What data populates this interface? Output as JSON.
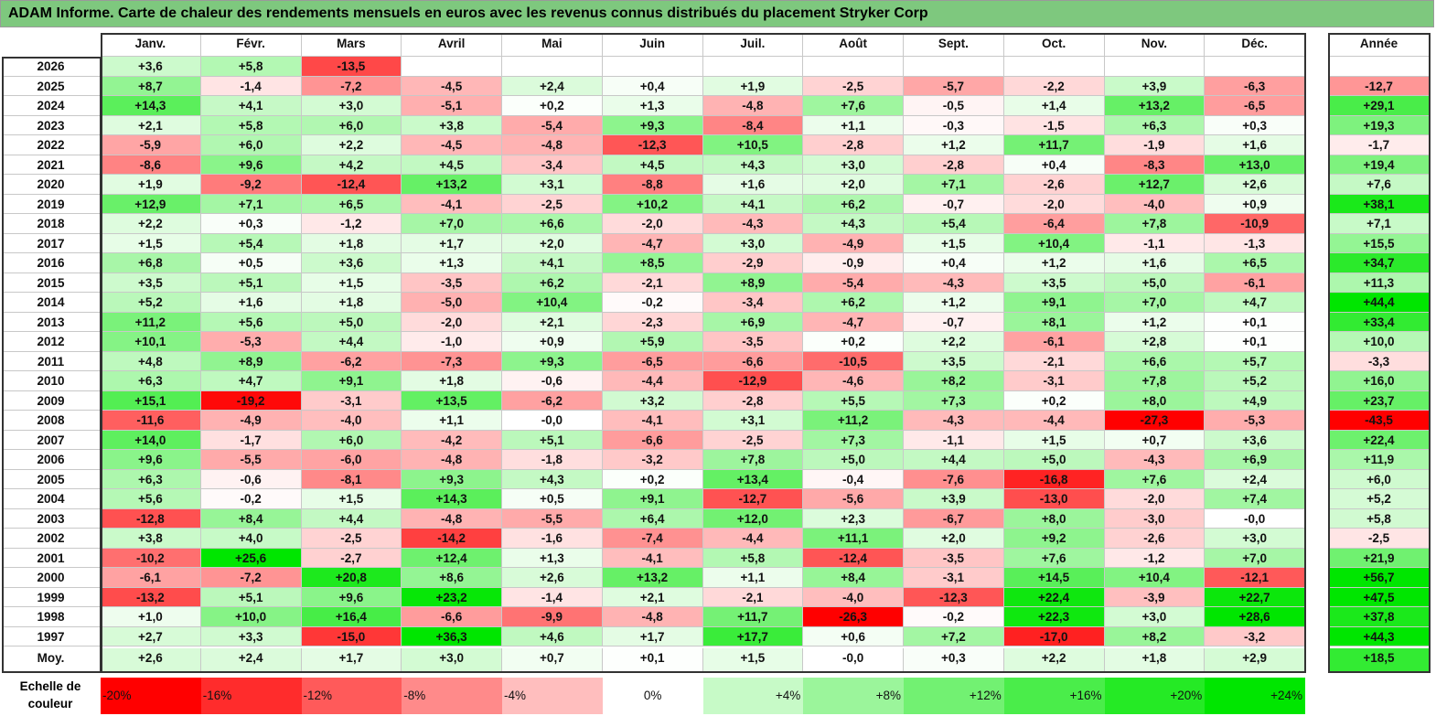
{
  "title": "ADAM Informe. Carte de chaleur des rendements mensuels en euros avec les revenus connus distribués du placement Stryker Corp",
  "chart_data": {
    "type": "heatmap",
    "columns": [
      "Janv.",
      "Févr.",
      "Mars",
      "Avril",
      "Mai",
      "Juin",
      "Juil.",
      "Août",
      "Sept.",
      "Oct.",
      "Nov.",
      "Déc."
    ],
    "year_header": "Année",
    "avg_label": "Moy.",
    "rows": [
      {
        "year": "2026",
        "values": [
          "+3,6",
          "+5,8",
          "-13,5",
          "",
          "",
          "",
          "",
          "",
          "",
          "",
          "",
          ""
        ],
        "annual": ""
      },
      {
        "year": "2025",
        "values": [
          "+8,7",
          "-1,4",
          "-7,2",
          "-4,5",
          "+2,4",
          "+0,4",
          "+1,9",
          "-2,5",
          "-5,7",
          "-2,2",
          "+3,9",
          "-6,3"
        ],
        "annual": "-12,7"
      },
      {
        "year": "2024",
        "values": [
          "+14,3",
          "+4,1",
          "+3,0",
          "-5,1",
          "+0,2",
          "+1,3",
          "-4,8",
          "+7,6",
          "-0,5",
          "+1,4",
          "+13,2",
          "-6,5"
        ],
        "annual": "+29,1"
      },
      {
        "year": "2023",
        "values": [
          "+2,1",
          "+5,8",
          "+6,0",
          "+3,8",
          "-5,4",
          "+9,3",
          "-8,4",
          "+1,1",
          "-0,3",
          "-1,5",
          "+6,3",
          "+0,3"
        ],
        "annual": "+19,3"
      },
      {
        "year": "2022",
        "values": [
          "-5,9",
          "+6,0",
          "+2,2",
          "-4,5",
          "-4,8",
          "-12,3",
          "+10,5",
          "-2,8",
          "+1,2",
          "+11,7",
          "-1,9",
          "+1,6"
        ],
        "annual": "-1,7"
      },
      {
        "year": "2021",
        "values": [
          "-8,6",
          "+9,6",
          "+4,2",
          "+4,5",
          "-3,4",
          "+4,5",
          "+4,3",
          "+3,0",
          "-2,8",
          "+0,4",
          "-8,3",
          "+13,0"
        ],
        "annual": "+19,4"
      },
      {
        "year": "2020",
        "values": [
          "+1,9",
          "-9,2",
          "-12,4",
          "+13,2",
          "+3,1",
          "-8,8",
          "+1,6",
          "+2,0",
          "+7,1",
          "-2,6",
          "+12,7",
          "+2,6"
        ],
        "annual": "+7,6"
      },
      {
        "year": "2019",
        "values": [
          "+12,9",
          "+7,1",
          "+6,5",
          "-4,1",
          "-2,5",
          "+10,2",
          "+4,1",
          "+6,2",
          "-0,7",
          "-2,0",
          "-4,0",
          "+0,9"
        ],
        "annual": "+38,1"
      },
      {
        "year": "2018",
        "values": [
          "+2,2",
          "+0,3",
          "-1,2",
          "+7,0",
          "+6,6",
          "-2,0",
          "-4,3",
          "+4,3",
          "+5,4",
          "-6,4",
          "+7,8",
          "-10,9"
        ],
        "annual": "+7,1"
      },
      {
        "year": "2017",
        "values": [
          "+1,5",
          "+5,4",
          "+1,8",
          "+1,7",
          "+2,0",
          "-4,7",
          "+3,0",
          "-4,9",
          "+1,5",
          "+10,4",
          "-1,1",
          "-1,3"
        ],
        "annual": "+15,5"
      },
      {
        "year": "2016",
        "values": [
          "+6,8",
          "+0,5",
          "+3,6",
          "+1,3",
          "+4,1",
          "+8,5",
          "-2,9",
          "-0,9",
          "+0,4",
          "+1,2",
          "+1,6",
          "+6,5"
        ],
        "annual": "+34,7"
      },
      {
        "year": "2015",
        "values": [
          "+3,5",
          "+5,1",
          "+1,5",
          "-3,5",
          "+6,2",
          "-2,1",
          "+8,9",
          "-5,4",
          "-4,3",
          "+3,5",
          "+5,0",
          "-6,1"
        ],
        "annual": "+11,3"
      },
      {
        "year": "2014",
        "values": [
          "+5,2",
          "+1,6",
          "+1,8",
          "-5,0",
          "+10,4",
          "-0,2",
          "-3,4",
          "+6,2",
          "+1,2",
          "+9,1",
          "+7,0",
          "+4,7"
        ],
        "annual": "+44,4"
      },
      {
        "year": "2013",
        "values": [
          "+11,2",
          "+5,6",
          "+5,0",
          "-2,0",
          "+2,1",
          "-2,3",
          "+6,9",
          "-4,7",
          "-0,7",
          "+8,1",
          "+1,2",
          "+0,1"
        ],
        "annual": "+33,4"
      },
      {
        "year": "2012",
        "values": [
          "+10,1",
          "-5,3",
          "+4,4",
          "-1,0",
          "+0,9",
          "+5,9",
          "-3,5",
          "+0,2",
          "+2,2",
          "-6,1",
          "+2,8",
          "+0,1"
        ],
        "annual": "+10,0"
      },
      {
        "year": "2011",
        "values": [
          "+4,8",
          "+8,9",
          "-6,2",
          "-7,3",
          "+9,3",
          "-6,5",
          "-6,6",
          "-10,5",
          "+3,5",
          "-2,1",
          "+6,6",
          "+5,7"
        ],
        "annual": "-3,3"
      },
      {
        "year": "2010",
        "values": [
          "+6,3",
          "+4,7",
          "+9,1",
          "+1,8",
          "-0,6",
          "-4,4",
          "-12,9",
          "-4,6",
          "+8,2",
          "-3,1",
          "+7,8",
          "+5,2"
        ],
        "annual": "+16,0"
      },
      {
        "year": "2009",
        "values": [
          "+15,1",
          "-19,2",
          "-3,1",
          "+13,5",
          "-6,2",
          "+3,2",
          "-2,8",
          "+5,5",
          "+7,3",
          "+0,2",
          "+8,0",
          "+4,9"
        ],
        "annual": "+23,7"
      },
      {
        "year": "2008",
        "values": [
          "-11,6",
          "-4,9",
          "-4,0",
          "+1,1",
          "-0,0",
          "-4,1",
          "+3,1",
          "+11,2",
          "-4,3",
          "-4,4",
          "-27,3",
          "-5,3"
        ],
        "annual": "-43,5"
      },
      {
        "year": "2007",
        "values": [
          "+14,0",
          "-1,7",
          "+6,0",
          "-4,2",
          "+5,1",
          "-6,6",
          "-2,5",
          "+7,3",
          "-1,1",
          "+1,5",
          "+0,7",
          "+3,6"
        ],
        "annual": "+22,4"
      },
      {
        "year": "2006",
        "values": [
          "+9,6",
          "-5,5",
          "-6,0",
          "-4,8",
          "-1,8",
          "-3,2",
          "+7,8",
          "+5,0",
          "+4,4",
          "+5,0",
          "-4,3",
          "+6,9"
        ],
        "annual": "+11,9"
      },
      {
        "year": "2005",
        "values": [
          "+6,3",
          "-0,6",
          "-8,1",
          "+9,3",
          "+4,3",
          "+0,2",
          "+13,4",
          "-0,4",
          "-7,6",
          "-16,8",
          "+7,6",
          "+2,4"
        ],
        "annual": "+6,0"
      },
      {
        "year": "2004",
        "values": [
          "+5,6",
          "-0,2",
          "+1,5",
          "+14,3",
          "+0,5",
          "+9,1",
          "-12,7",
          "-5,6",
          "+3,9",
          "-13,0",
          "-2,0",
          "+7,4"
        ],
        "annual": "+5,2"
      },
      {
        "year": "2003",
        "values": [
          "-12,8",
          "+8,4",
          "+4,4",
          "-4,8",
          "-5,5",
          "+6,4",
          "+12,0",
          "+2,3",
          "-6,7",
          "+8,0",
          "-3,0",
          "-0,0"
        ],
        "annual": "+5,8"
      },
      {
        "year": "2002",
        "values": [
          "+3,8",
          "+4,0",
          "-2,5",
          "-14,2",
          "-1,6",
          "-7,4",
          "-4,4",
          "+11,1",
          "+2,0",
          "+9,2",
          "-2,6",
          "+3,0"
        ],
        "annual": "-2,5"
      },
      {
        "year": "2001",
        "values": [
          "-10,2",
          "+25,6",
          "-2,7",
          "+12,4",
          "+1,3",
          "-4,1",
          "+5,8",
          "-12,4",
          "-3,5",
          "+7,6",
          "-1,2",
          "+7,0"
        ],
        "annual": "+21,9"
      },
      {
        "year": "2000",
        "values": [
          "-6,1",
          "-7,2",
          "+20,8",
          "+8,6",
          "+2,6",
          "+13,2",
          "+1,1",
          "+8,4",
          "-3,1",
          "+14,5",
          "+10,4",
          "-12,1"
        ],
        "annual": "+56,7"
      },
      {
        "year": "1999",
        "values": [
          "-13,2",
          "+5,1",
          "+9,6",
          "+23,2",
          "-1,4",
          "+2,1",
          "-2,1",
          "-4,0",
          "-12,3",
          "+22,4",
          "-3,9",
          "+22,7"
        ],
        "annual": "+47,5"
      },
      {
        "year": "1998",
        "values": [
          "+1,0",
          "+10,0",
          "+16,4",
          "-6,6",
          "-9,9",
          "-4,8",
          "+11,7",
          "-26,3",
          "-0,2",
          "+22,3",
          "+3,0",
          "+28,6"
        ],
        "annual": "+37,8"
      },
      {
        "year": "1997",
        "values": [
          "+2,7",
          "+3,3",
          "-15,0",
          "+36,3",
          "+4,6",
          "+1,7",
          "+17,7",
          "+0,6",
          "+7,2",
          "-17,0",
          "+8,2",
          "-3,2"
        ],
        "annual": "+44,3"
      }
    ],
    "averages": [
      "+2,6",
      "+2,4",
      "+1,7",
      "+3,0",
      "+0,7",
      "+0,1",
      "+1,5",
      "-0,0",
      "+0,3",
      "+2,2",
      "+1,8",
      "+2,9"
    ],
    "average_annual": "+18,5",
    "scale_label": "Echelle de couleur",
    "scale": [
      "-20%",
      "-16%",
      "-12%",
      "-8%",
      "-4%",
      "0%",
      "+4%",
      "+8%",
      "+12%",
      "+16%",
      "+20%",
      "+24%"
    ],
    "colors": {
      "negative_max": "#ff0000",
      "neutral": "#ffffff",
      "positive_max": "#00e600",
      "title_bg": "#7ec87e"
    }
  }
}
